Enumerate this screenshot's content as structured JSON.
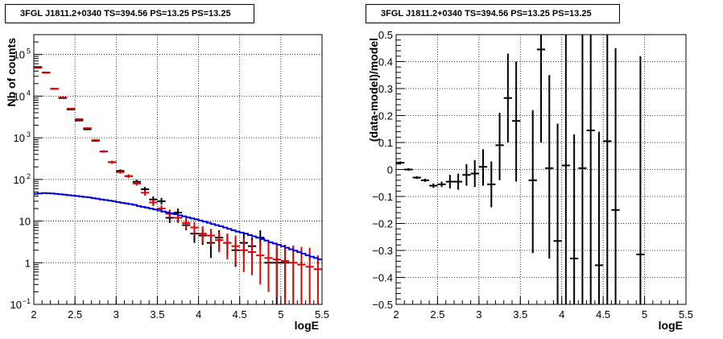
{
  "panels": [
    {
      "title": "3FGL J1811.2+0340 TS=394.56 PS=13.25 PS=13.25",
      "xlabel": "logE",
      "ylabel": "Nb of counts"
    },
    {
      "title": "3FGL J1811.2+0340 TS=394.56 PS=13.25 PS=13.25",
      "xlabel": "logE",
      "ylabel": "(data-model)/model"
    }
  ],
  "colors": {
    "data": "#000000",
    "model": "#e00000",
    "component": "#0000dd"
  },
  "chart_data": [
    {
      "type": "scatter",
      "title": "3FGL J1811.2+0340 TS=394.56 PS=13.25 PS=13.25",
      "xlabel": "logE",
      "ylabel": "Nb of counts",
      "log_y": true,
      "xlim": [
        2,
        5.5
      ],
      "ylim": [
        0.1,
        300000
      ],
      "grid": true,
      "x_ticks": [
        {
          "v": 2,
          "label": "2"
        },
        {
          "v": 2.5,
          "label": "2.5"
        },
        {
          "v": 3,
          "label": "3"
        },
        {
          "v": 3.5,
          "label": "3.5"
        },
        {
          "v": 4,
          "label": "4"
        },
        {
          "v": 4.5,
          "label": "4.5"
        },
        {
          "v": 5,
          "label": "5"
        },
        {
          "v": 5.5,
          "label": "5.5"
        }
      ],
      "y_ticks": [
        {
          "v": 0.1,
          "label": "10",
          "sup": "−1"
        },
        {
          "v": 1,
          "label": "1",
          "sup": ""
        },
        {
          "v": 10,
          "label": "10",
          "sup": ""
        },
        {
          "v": 100,
          "label": "10",
          "sup": "2"
        },
        {
          "v": 1000,
          "label": "10",
          "sup": "3"
        },
        {
          "v": 10000,
          "label": "10",
          "sup": "4"
        },
        {
          "v": 100000,
          "label": "10",
          "sup": "5"
        }
      ],
      "bin_half_width": 0.05,
      "series": [
        {
          "kind": "data_points",
          "color": "#000000",
          "points": [
            {
              "x": 2.05,
              "y": 50000,
              "lo": 49500,
              "hi": 50500
            },
            {
              "x": 2.15,
              "y": 37000,
              "lo": 36600,
              "hi": 37400
            },
            {
              "x": 2.25,
              "y": 15000,
              "lo": 14750,
              "hi": 15250
            },
            {
              "x": 2.35,
              "y": 9000,
              "lo": 8800,
              "hi": 9200
            },
            {
              "x": 2.45,
              "y": 4800,
              "lo": 4650,
              "hi": 4950
            },
            {
              "x": 2.55,
              "y": 2600,
              "lo": 2500,
              "hi": 2700
            },
            {
              "x": 2.65,
              "y": 1600,
              "lo": 1520,
              "hi": 1680
            },
            {
              "x": 2.75,
              "y": 850,
              "lo": 800,
              "hi": 900
            },
            {
              "x": 2.85,
              "y": 470,
              "lo": 440,
              "hi": 500
            },
            {
              "x": 2.95,
              "y": 260,
              "lo": 240,
              "hi": 280
            },
            {
              "x": 3.05,
              "y": 160,
              "lo": 145,
              "hi": 175
            },
            {
              "x": 3.15,
              "y": 120,
              "lo": 108,
              "hi": 132
            },
            {
              "x": 3.25,
              "y": 88,
              "lo": 78,
              "hi": 98
            },
            {
              "x": 3.35,
              "y": 58,
              "lo": 50,
              "hi": 66
            },
            {
              "x": 3.45,
              "y": 33,
              "lo": 27,
              "hi": 39
            },
            {
              "x": 3.55,
              "y": 30,
              "lo": 25,
              "hi": 36
            },
            {
              "x": 3.65,
              "y": 12,
              "lo": 9,
              "hi": 15
            },
            {
              "x": 3.75,
              "y": 16,
              "lo": 12,
              "hi": 20
            },
            {
              "x": 3.85,
              "y": 8,
              "lo": 6,
              "hi": 11
            },
            {
              "x": 3.95,
              "y": 5,
              "lo": 3,
              "hi": 7
            },
            {
              "x": 4.05,
              "y": 4.5,
              "lo": 2.7,
              "hi": 6.6
            },
            {
              "x": 4.15,
              "y": 3,
              "lo": 1.3,
              "hi": 4.7
            },
            {
              "x": 4.25,
              "y": 4,
              "lo": 2.2,
              "hi": 6
            },
            {
              "x": 4.35,
              "y": 3,
              "lo": 1.5,
              "hi": 4.8
            },
            {
              "x": 4.45,
              "y": 2,
              "lo": 0.8,
              "hi": 3.5
            },
            {
              "x": 4.55,
              "y": 3,
              "lo": 1.5,
              "hi": 5
            },
            {
              "x": 4.65,
              "y": 2.5,
              "lo": 1,
              "hi": 4
            },
            {
              "x": 4.75,
              "y": 4,
              "lo": 2,
              "hi": 6
            },
            {
              "x": 4.85,
              "y": 1,
              "lo": 0.3,
              "hi": 2.3
            },
            {
              "x": 4.95,
              "y": 1,
              "lo": 0.1,
              "hi": 2.3
            },
            {
              "x": 5.05,
              "y": 1,
              "lo": 0.1,
              "hi": 2.3
            }
          ]
        },
        {
          "kind": "model_points",
          "color": "#e00000",
          "points": [
            {
              "x": 2.05,
              "y": 48000,
              "lo": 47500,
              "hi": 48500
            },
            {
              "x": 2.15,
              "y": 36500,
              "lo": 36100,
              "hi": 36900
            },
            {
              "x": 2.25,
              "y": 15000,
              "lo": 14750,
              "hi": 15250
            },
            {
              "x": 2.35,
              "y": 9300,
              "lo": 9100,
              "hi": 9500
            },
            {
              "x": 2.45,
              "y": 5000,
              "lo": 4850,
              "hi": 5150
            },
            {
              "x": 2.55,
              "y": 2800,
              "lo": 2700,
              "hi": 2900
            },
            {
              "x": 2.65,
              "y": 1700,
              "lo": 1620,
              "hi": 1780
            },
            {
              "x": 2.75,
              "y": 880,
              "lo": 830,
              "hi": 930
            },
            {
              "x": 2.85,
              "y": 470,
              "lo": 440,
              "hi": 500
            },
            {
              "x": 2.95,
              "y": 260,
              "lo": 240,
              "hi": 280
            },
            {
              "x": 3.05,
              "y": 150,
              "lo": 138,
              "hi": 162
            },
            {
              "x": 3.15,
              "y": 120,
              "lo": 109,
              "hi": 131
            },
            {
              "x": 3.25,
              "y": 80,
              "lo": 71,
              "hi": 89
            },
            {
              "x": 3.35,
              "y": 48,
              "lo": 41,
              "hi": 55
            },
            {
              "x": 3.45,
              "y": 28,
              "lo": 23,
              "hi": 33
            },
            {
              "x": 3.55,
              "y": 20,
              "lo": 16,
              "hi": 24
            },
            {
              "x": 3.65,
              "y": 15,
              "lo": 12,
              "hi": 19
            },
            {
              "x": 3.75,
              "y": 12,
              "lo": 9,
              "hi": 15
            },
            {
              "x": 3.85,
              "y": 9,
              "lo": 6.5,
              "hi": 12
            },
            {
              "x": 3.95,
              "y": 7,
              "lo": 4.5,
              "hi": 9.5
            },
            {
              "x": 4.05,
              "y": 5,
              "lo": 3,
              "hi": 7.5
            },
            {
              "x": 4.15,
              "y": 4.5,
              "lo": 2.5,
              "hi": 6.5
            },
            {
              "x": 4.25,
              "y": 3.5,
              "lo": 1.8,
              "hi": 5.5
            },
            {
              "x": 4.35,
              "y": 3,
              "lo": 1.2,
              "hi": 5
            },
            {
              "x": 4.45,
              "y": 2.5,
              "lo": 0.9,
              "hi": 4.5
            },
            {
              "x": 4.55,
              "y": 2,
              "lo": 0.6,
              "hi": 3.8
            },
            {
              "x": 4.65,
              "y": 1.8,
              "lo": 0.5,
              "hi": 3.5
            },
            {
              "x": 4.75,
              "y": 1.5,
              "lo": 0.3,
              "hi": 3.2
            },
            {
              "x": 4.85,
              "y": 1.3,
              "lo": 0.2,
              "hi": 3
            },
            {
              "x": 4.95,
              "y": 1.2,
              "lo": 0.15,
              "hi": 2.8
            },
            {
              "x": 5.05,
              "y": 1.1,
              "lo": 0.1,
              "hi": 2.7
            },
            {
              "x": 5.15,
              "y": 1,
              "lo": 0.1,
              "hi": 2.6
            },
            {
              "x": 5.25,
              "y": 0.9,
              "lo": 0.1,
              "hi": 2.4
            },
            {
              "x": 5.35,
              "y": 0.8,
              "lo": 0.1,
              "hi": 2.3
            },
            {
              "x": 5.45,
              "y": 0.7,
              "lo": 0.1,
              "hi": 1.5
            }
          ]
        },
        {
          "kind": "step_histogram",
          "color": "#0000dd",
          "bin_width": 0.05,
          "x_start": 2.0,
          "values": [
            45,
            46,
            47,
            46.5,
            46,
            45,
            44,
            43,
            42,
            41,
            40,
            39,
            38,
            37,
            35.5,
            34.5,
            33,
            32,
            31,
            30,
            28.5,
            27.5,
            26.5,
            25.5,
            24.5,
            23,
            22,
            21,
            20,
            19,
            18,
            17,
            16.2,
            15.4,
            14.6,
            13.8,
            13,
            12.3,
            11.6,
            11,
            10.3,
            9.7,
            9.1,
            8.5,
            8,
            7.5,
            7,
            6.5,
            6,
            5.6,
            5.3,
            5,
            4.6,
            4.3,
            4,
            3.7,
            3.4,
            3.1,
            2.9,
            2.7,
            2.5,
            2.3,
            2.1,
            1.95,
            1.8,
            1.65,
            1.5,
            1.4,
            1.3,
            1.2
          ]
        }
      ]
    },
    {
      "type": "scatter",
      "title": "3FGL J1811.2+0340 TS=394.56 PS=13.25 PS=13.25",
      "xlabel": "logE",
      "ylabel": "(data-model)/model",
      "log_y": false,
      "xlim": [
        2,
        5.5
      ],
      "ylim": [
        -0.5,
        0.5
      ],
      "grid": true,
      "x_ticks": [
        {
          "v": 2,
          "label": "2"
        },
        {
          "v": 2.5,
          "label": "2.5"
        },
        {
          "v": 3,
          "label": "3"
        },
        {
          "v": 3.5,
          "label": "3.5"
        },
        {
          "v": 4,
          "label": "4"
        },
        {
          "v": 4.5,
          "label": "4.5"
        },
        {
          "v": 5,
          "label": "5"
        },
        {
          "v": 5.5,
          "label": "5.5"
        }
      ],
      "y_ticks": [
        {
          "v": -0.5,
          "label": "−0.5"
        },
        {
          "v": -0.4,
          "label": "−0.4"
        },
        {
          "v": -0.3,
          "label": "−0.3"
        },
        {
          "v": -0.2,
          "label": "−0.2"
        },
        {
          "v": -0.1,
          "label": "−0.1"
        },
        {
          "v": 0,
          "label": "0"
        },
        {
          "v": 0.1,
          "label": "0.1"
        },
        {
          "v": 0.2,
          "label": "0.2"
        },
        {
          "v": 0.3,
          "label": "0.3"
        },
        {
          "v": 0.4,
          "label": "0.4"
        },
        {
          "v": 0.5,
          "label": "0.5"
        }
      ],
      "bin_half_width": 0.05,
      "series": [
        {
          "kind": "residuals",
          "color": "#000000",
          "points": [
            {
              "x": 2.05,
              "y": 0.025,
              "lo": 0.02,
              "hi": 0.03
            },
            {
              "x": 2.15,
              "y": 0.0,
              "lo": -0.005,
              "hi": 0.005
            },
            {
              "x": 2.25,
              "y": -0.03,
              "lo": -0.035,
              "hi": -0.025
            },
            {
              "x": 2.35,
              "y": -0.04,
              "lo": -0.046,
              "hi": -0.034
            },
            {
              "x": 2.45,
              "y": -0.06,
              "lo": -0.068,
              "hi": -0.052
            },
            {
              "x": 2.55,
              "y": -0.055,
              "lo": -0.065,
              "hi": -0.045
            },
            {
              "x": 2.65,
              "y": -0.045,
              "lo": -0.07,
              "hi": -0.02
            },
            {
              "x": 2.75,
              "y": -0.045,
              "lo": -0.075,
              "hi": -0.015
            },
            {
              "x": 2.85,
              "y": -0.02,
              "lo": -0.06,
              "hi": 0.02
            },
            {
              "x": 2.95,
              "y": -0.015,
              "lo": -0.065,
              "hi": 0.035
            },
            {
              "x": 3.05,
              "y": 0.01,
              "lo": -0.06,
              "hi": 0.075
            },
            {
              "x": 3.15,
              "y": -0.055,
              "lo": -0.14,
              "hi": 0.03
            },
            {
              "x": 3.25,
              "y": 0.09,
              "lo": -0.04,
              "hi": 0.21
            },
            {
              "x": 3.35,
              "y": 0.265,
              "lo": 0.1,
              "hi": 0.43
            },
            {
              "x": 3.45,
              "y": 0.18,
              "lo": -0.045,
              "hi": 0.4
            },
            {
              "x": 3.65,
              "y": -0.04,
              "lo": -0.31,
              "hi": 0.22
            },
            {
              "x": 3.75,
              "y": 0.445,
              "lo": 0.1,
              "hi": 0.5
            },
            {
              "x": 3.85,
              "y": 0.005,
              "lo": -0.33,
              "hi": 0.35
            },
            {
              "x": 3.95,
              "y": -0.265,
              "lo": -0.5,
              "hi": 0.17
            },
            {
              "x": 4.05,
              "y": 0.015,
              "lo": -0.5,
              "hi": 0.5
            },
            {
              "x": 4.15,
              "y": -0.33,
              "lo": -0.5,
              "hi": 0.13
            },
            {
              "x": 4.25,
              "y": 0.005,
              "lo": -0.5,
              "hi": 0.5
            },
            {
              "x": 4.35,
              "y": 0.145,
              "lo": -0.5,
              "hi": 0.5
            },
            {
              "x": 4.45,
              "y": -0.355,
              "lo": -0.5,
              "hi": 0.14
            },
            {
              "x": 4.55,
              "y": 0.105,
              "lo": -0.5,
              "hi": 0.5
            },
            {
              "x": 4.65,
              "y": -0.15,
              "lo": -0.5,
              "hi": 0.45
            },
            {
              "x": 4.95,
              "y": -0.315,
              "lo": -0.5,
              "hi": 0.42
            }
          ]
        }
      ]
    }
  ]
}
